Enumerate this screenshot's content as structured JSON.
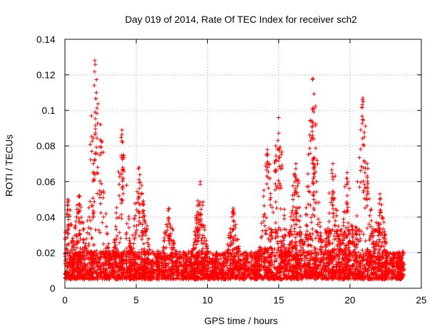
{
  "chart_data": {
    "type": "scatter",
    "title": "Day 019 of 2014, Rate Of TEC Index for receiver sch2",
    "xlabel": "GPS time / hours",
    "ylabel": "ROTI / TECUs",
    "xlim": [
      0,
      25
    ],
    "ylim": [
      0,
      0.14
    ],
    "x_ticks": [
      0,
      5,
      10,
      15,
      20,
      25
    ],
    "x_tick_labels": [
      "0",
      "5",
      "10",
      "15",
      "20",
      "25"
    ],
    "y_ticks": [
      0,
      0.02,
      0.04,
      0.06,
      0.08,
      0.1,
      0.12,
      0.14
    ],
    "y_tick_labels": [
      "0",
      "0.02",
      "0.04",
      "0.06",
      "0.08",
      "0.1",
      "0.12",
      "0.14"
    ],
    "grid": true,
    "marker": "+",
    "color": "#ff0000",
    "x_data_range": [
      0,
      23.8
    ],
    "baseline_band": [
      0.005,
      0.02
    ],
    "spikes": [
      {
        "x": 0.2,
        "y": 0.05
      },
      {
        "x": 1.0,
        "y": 0.052
      },
      {
        "x": 2.1,
        "y": 0.128
      },
      {
        "x": 2.2,
        "y": 0.11
      },
      {
        "x": 2.5,
        "y": 0.092
      },
      {
        "x": 2.0,
        "y": 0.07
      },
      {
        "x": 4.0,
        "y": 0.089
      },
      {
        "x": 4.1,
        "y": 0.075
      },
      {
        "x": 5.2,
        "y": 0.068
      },
      {
        "x": 5.5,
        "y": 0.049
      },
      {
        "x": 7.3,
        "y": 0.045
      },
      {
        "x": 9.5,
        "y": 0.06
      },
      {
        "x": 9.3,
        "y": 0.04
      },
      {
        "x": 11.8,
        "y": 0.045
      },
      {
        "x": 14.2,
        "y": 0.078
      },
      {
        "x": 14.8,
        "y": 0.08
      },
      {
        "x": 15.0,
        "y": 0.096
      },
      {
        "x": 16.2,
        "y": 0.07
      },
      {
        "x": 17.4,
        "y": 0.118
      },
      {
        "x": 17.4,
        "y": 0.093
      },
      {
        "x": 17.5,
        "y": 0.073
      },
      {
        "x": 18.8,
        "y": 0.07
      },
      {
        "x": 19.8,
        "y": 0.065
      },
      {
        "x": 20.9,
        "y": 0.107
      },
      {
        "x": 21.0,
        "y": 0.085
      },
      {
        "x": 21.2,
        "y": 0.07
      },
      {
        "x": 22.1,
        "y": 0.053
      }
    ]
  }
}
